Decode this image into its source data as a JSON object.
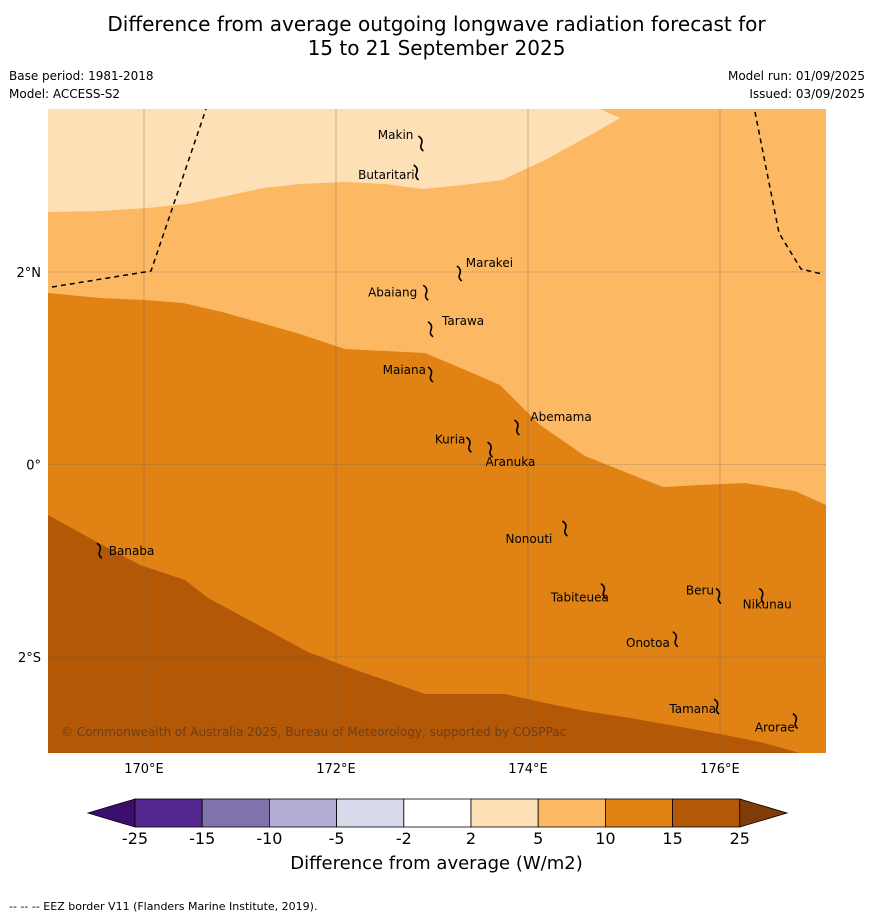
{
  "title": {
    "line1": "Difference from average outgoing longwave radiation forecast for",
    "line2": "15 to 21 September 2025"
  },
  "meta": {
    "base_period": "Base period: 1981-2018",
    "model": "Model: ACCESS-S2",
    "model_run": "Model run: 01/09/2025",
    "issued": "Issued: 03/09/2025"
  },
  "map": {
    "lon_range": [
      169.0,
      177.1
    ],
    "lat_range": [
      -3.0,
      3.6
    ],
    "lon_ticks": [
      {
        "value": 170,
        "label": "170°E"
      },
      {
        "value": 172,
        "label": "172°E"
      },
      {
        "value": 174,
        "label": "174°E"
      },
      {
        "value": 176,
        "label": "176°E"
      }
    ],
    "lat_ticks": [
      {
        "value": 2,
        "label": "2°N"
      },
      {
        "value": 0,
        "label": "0°"
      },
      {
        "value": -2,
        "label": "2°S"
      }
    ],
    "copyright": "© Commonwealth of Australia 2025, Bureau of Meteorology, supported by COSPPac",
    "islands": [
      {
        "name": "Makin",
        "lon": 172.9,
        "lat": 3.35
      },
      {
        "name": "Butaritari",
        "lon": 172.85,
        "lat": 3.05
      },
      {
        "name": "Marakei",
        "lon": 173.3,
        "lat": 2.0
      },
      {
        "name": "Abaiang",
        "lon": 172.95,
        "lat": 1.8
      },
      {
        "name": "Tarawa",
        "lon": 173.0,
        "lat": 1.42
      },
      {
        "name": "Maiana",
        "lon": 173.0,
        "lat": 0.95
      },
      {
        "name": "Abemama",
        "lon": 173.9,
        "lat": 0.4
      },
      {
        "name": "Kuria",
        "lon": 173.4,
        "lat": 0.22
      },
      {
        "name": "Aranuka",
        "lon": 173.62,
        "lat": 0.17
      },
      {
        "name": "Nonouti",
        "lon": 174.4,
        "lat": -0.65
      },
      {
        "name": "Banaba",
        "lon": 169.55,
        "lat": -0.88
      },
      {
        "name": "Tabiteuea",
        "lon": 174.8,
        "lat": -1.3
      },
      {
        "name": "Beru",
        "lon": 176.0,
        "lat": -1.35
      },
      {
        "name": "Nikunau",
        "lon": 176.45,
        "lat": -1.35
      },
      {
        "name": "Onotoa",
        "lon": 175.55,
        "lat": -1.8
      },
      {
        "name": "Tamana",
        "lon": 175.98,
        "lat": -2.5
      },
      {
        "name": "Arorae",
        "lon": 176.8,
        "lat": -2.65
      }
    ]
  },
  "colorbar": {
    "ticks": [
      "-25",
      "-15",
      "-10",
      "-5",
      "-2",
      "2",
      "5",
      "10",
      "15",
      "25"
    ],
    "colors": [
      "#3b0f6f",
      "#54278f",
      "#8073ac",
      "#b2abd2",
      "#d8daeb",
      "#ffffff",
      "#fee0b6",
      "#fdb863",
      "#e08214",
      "#b35806",
      "#7f3b08"
    ],
    "label": "Difference from average (W/m2)"
  },
  "footer": "--  --  -- EEZ border V11 (Flanders Marine Institute, 2019)."
}
